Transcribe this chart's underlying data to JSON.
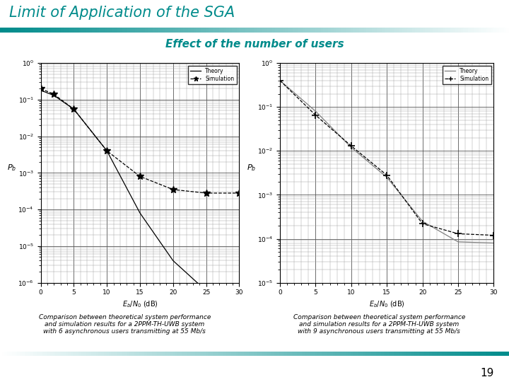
{
  "title": "Limit of Application of the SGA",
  "subtitle": "Effect of the number of users",
  "title_color": "#008B8B",
  "subtitle_color": "#008B8B",
  "page_number": "19",
  "left_caption": "Comparison between theoretical system performance\nand simulation results for a 2PPM-TH-UWB system\nwith 6 asynchronous users transmitting at 55 Mb/s",
  "right_caption": "Comparison between theoretical system performance\nand simulation results for a 2PPM-TH-UWB system\nwith 9 asynchronous users transmitting at 55 Mb/s",
  "left_plot": {
    "theory_x": [
      0,
      2,
      5,
      10,
      15,
      20,
      25,
      30
    ],
    "theory_y": [
      0.18,
      0.13,
      0.055,
      0.004,
      8e-05,
      4e-06,
      6e-07,
      4.5e-07
    ],
    "sim_x": [
      0,
      2,
      5,
      10,
      15,
      20,
      25,
      30
    ],
    "sim_y": [
      0.2,
      0.14,
      0.055,
      0.004,
      0.0008,
      0.00035,
      0.00028,
      0.00028
    ],
    "xlim": [
      0,
      30
    ],
    "ymin": 1e-06,
    "ymax": 1.0
  },
  "right_plot": {
    "theory_x": [
      0,
      5,
      10,
      15,
      20,
      25,
      30
    ],
    "theory_y": [
      0.4,
      0.08,
      0.012,
      0.0025,
      0.00025,
      8.5e-05,
      8e-05
    ],
    "sim_x": [
      0,
      5,
      10,
      15,
      20,
      25,
      30
    ],
    "sim_y": [
      0.4,
      0.065,
      0.013,
      0.0028,
      0.00022,
      0.00013,
      0.00012
    ],
    "xlim": [
      0,
      30
    ],
    "ymin": 1e-05,
    "ymax": 1.0
  },
  "teal_color": "#008B8B",
  "bg_color": "#ffffff",
  "plot_bg": "#ffffff",
  "grid_major_color": "#000000",
  "grid_minor_color": "#888888"
}
